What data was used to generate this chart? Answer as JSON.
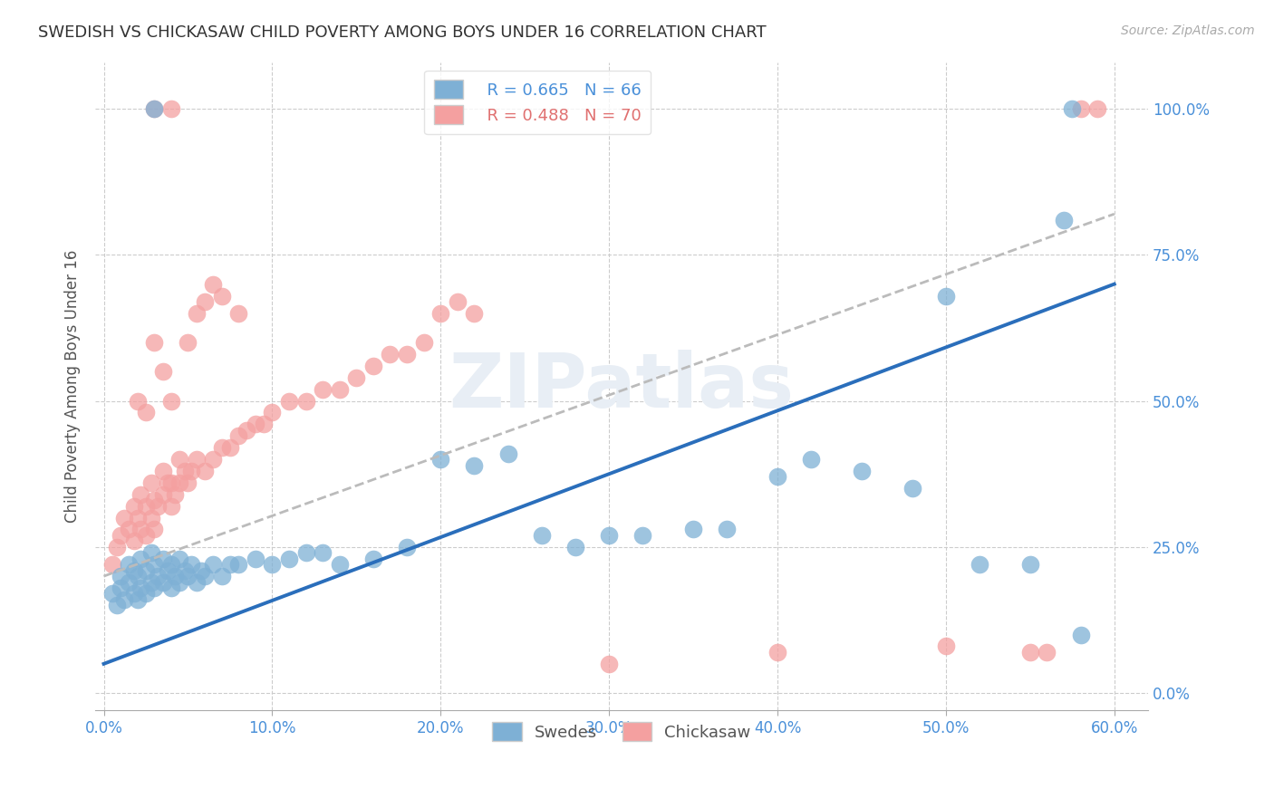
{
  "title": "SWEDISH VS CHICKASAW CHILD POVERTY AMONG BOYS UNDER 16 CORRELATION CHART",
  "source": "Source: ZipAtlas.com",
  "ylabel_label": "Child Poverty Among Boys Under 16",
  "xlim": [
    -0.005,
    0.62
  ],
  "ylim": [
    -0.03,
    1.08
  ],
  "xtick_vals": [
    0.0,
    0.1,
    0.2,
    0.3,
    0.4,
    0.5,
    0.6
  ],
  "xtick_labels": [
    "0.0%",
    "10.0%",
    "20.0%",
    "30.0%",
    "40.0%",
    "50.0%",
    "60.0%"
  ],
  "ytick_vals": [
    0.0,
    0.25,
    0.5,
    0.75,
    1.0
  ],
  "ytick_labels": [
    "0.0%",
    "25.0%",
    "50.0%",
    "75.0%",
    "100.0%"
  ],
  "legend_blue_R": "R = 0.665",
  "legend_blue_N": "N = 66",
  "legend_pink_R": "R = 0.488",
  "legend_pink_N": "N = 70",
  "blue_color": "#7EB0D5",
  "pink_color": "#F4A0A0",
  "blue_line_color": "#2A6EBB",
  "pink_line_color": "#BBBBBB",
  "tick_color": "#4A90D9",
  "watermark_color": "#E8EEF5",
  "blue_fit_x": [
    0.0,
    0.6
  ],
  "blue_fit_y": [
    0.05,
    0.7
  ],
  "pink_fit_x": [
    0.0,
    0.6
  ],
  "pink_fit_y": [
    0.2,
    0.82
  ],
  "swedes_x": [
    0.005,
    0.008,
    0.01,
    0.01,
    0.012,
    0.015,
    0.015,
    0.018,
    0.018,
    0.02,
    0.02,
    0.022,
    0.022,
    0.025,
    0.025,
    0.028,
    0.028,
    0.03,
    0.03,
    0.032,
    0.035,
    0.035,
    0.038,
    0.04,
    0.04,
    0.042,
    0.045,
    0.045,
    0.048,
    0.05,
    0.052,
    0.055,
    0.058,
    0.06,
    0.065,
    0.07,
    0.075,
    0.08,
    0.09,
    0.1,
    0.11,
    0.12,
    0.13,
    0.14,
    0.16,
    0.18,
    0.2,
    0.22,
    0.24,
    0.26,
    0.28,
    0.3,
    0.32,
    0.35,
    0.37,
    0.4,
    0.42,
    0.45,
    0.48,
    0.5,
    0.52,
    0.55,
    0.57,
    0.58,
    0.03,
    0.575
  ],
  "swedes_y": [
    0.17,
    0.15,
    0.18,
    0.2,
    0.16,
    0.19,
    0.22,
    0.17,
    0.21,
    0.16,
    0.2,
    0.18,
    0.23,
    0.17,
    0.21,
    0.19,
    0.24,
    0.18,
    0.22,
    0.2,
    0.19,
    0.23,
    0.21,
    0.18,
    0.22,
    0.2,
    0.19,
    0.23,
    0.21,
    0.2,
    0.22,
    0.19,
    0.21,
    0.2,
    0.22,
    0.2,
    0.22,
    0.22,
    0.23,
    0.22,
    0.23,
    0.24,
    0.24,
    0.22,
    0.23,
    0.25,
    0.4,
    0.39,
    0.41,
    0.27,
    0.25,
    0.27,
    0.27,
    0.28,
    0.28,
    0.37,
    0.4,
    0.38,
    0.35,
    0.68,
    0.22,
    0.22,
    0.81,
    0.1,
    1.0,
    1.0
  ],
  "chickasaw_x": [
    0.005,
    0.008,
    0.01,
    0.012,
    0.015,
    0.018,
    0.018,
    0.02,
    0.022,
    0.022,
    0.025,
    0.025,
    0.028,
    0.028,
    0.03,
    0.03,
    0.032,
    0.035,
    0.035,
    0.038,
    0.04,
    0.04,
    0.042,
    0.045,
    0.045,
    0.048,
    0.05,
    0.052,
    0.055,
    0.06,
    0.065,
    0.07,
    0.075,
    0.08,
    0.085,
    0.09,
    0.095,
    0.1,
    0.11,
    0.12,
    0.13,
    0.14,
    0.15,
    0.16,
    0.17,
    0.18,
    0.19,
    0.2,
    0.21,
    0.22,
    0.05,
    0.055,
    0.06,
    0.065,
    0.07,
    0.08,
    0.02,
    0.025,
    0.3,
    0.4,
    0.5,
    0.55,
    0.56,
    0.03,
    0.035,
    0.04,
    0.58,
    0.59,
    0.03,
    0.04
  ],
  "chickasaw_y": [
    0.22,
    0.25,
    0.27,
    0.3,
    0.28,
    0.32,
    0.26,
    0.3,
    0.28,
    0.34,
    0.27,
    0.32,
    0.3,
    0.36,
    0.28,
    0.33,
    0.32,
    0.34,
    0.38,
    0.36,
    0.32,
    0.36,
    0.34,
    0.36,
    0.4,
    0.38,
    0.36,
    0.38,
    0.4,
    0.38,
    0.4,
    0.42,
    0.42,
    0.44,
    0.45,
    0.46,
    0.46,
    0.48,
    0.5,
    0.5,
    0.52,
    0.52,
    0.54,
    0.56,
    0.58,
    0.58,
    0.6,
    0.65,
    0.67,
    0.65,
    0.6,
    0.65,
    0.67,
    0.7,
    0.68,
    0.65,
    0.5,
    0.48,
    0.05,
    0.07,
    0.08,
    0.07,
    0.07,
    0.6,
    0.55,
    0.5,
    1.0,
    1.0,
    1.0,
    1.0
  ]
}
